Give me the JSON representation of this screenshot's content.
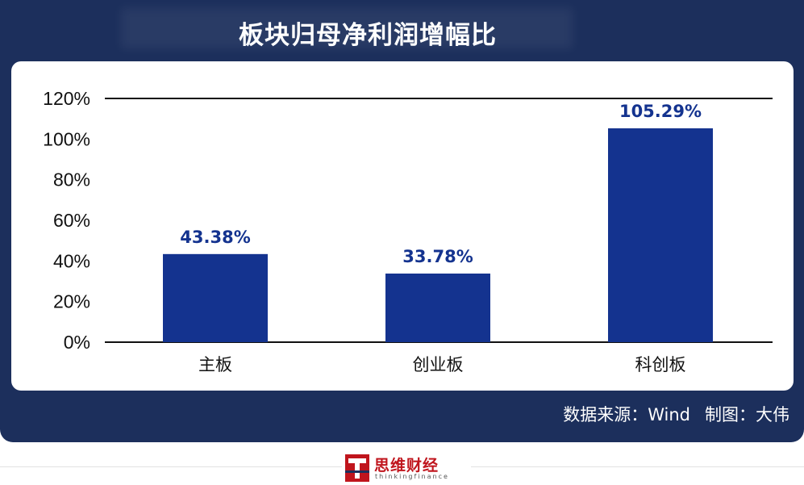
{
  "header": {
    "title": "板块归母净利润增幅比"
  },
  "footer": {
    "source": "数据来源：Wind",
    "author": "制图：大伟"
  },
  "logo": {
    "name": "思维财经",
    "subtitle": "thinkingfinance"
  },
  "colors": {
    "frame": "#1c2f5c",
    "bar": "#14338f",
    "value_label": "#14338f",
    "axis": "#111111",
    "logo": "#c0151d"
  },
  "chart_data": {
    "type": "bar",
    "categories": [
      "主板",
      "创业板",
      "科创板"
    ],
    "values": [
      43.38,
      33.78,
      105.29
    ],
    "value_labels": [
      "43.38%",
      "33.78%",
      "105.29%"
    ],
    "yticks": [
      "0%",
      "20%",
      "40%",
      "60%",
      "80%",
      "100%",
      "120%"
    ],
    "ylim": [
      0,
      120
    ],
    "grid": false,
    "legend": "none"
  }
}
